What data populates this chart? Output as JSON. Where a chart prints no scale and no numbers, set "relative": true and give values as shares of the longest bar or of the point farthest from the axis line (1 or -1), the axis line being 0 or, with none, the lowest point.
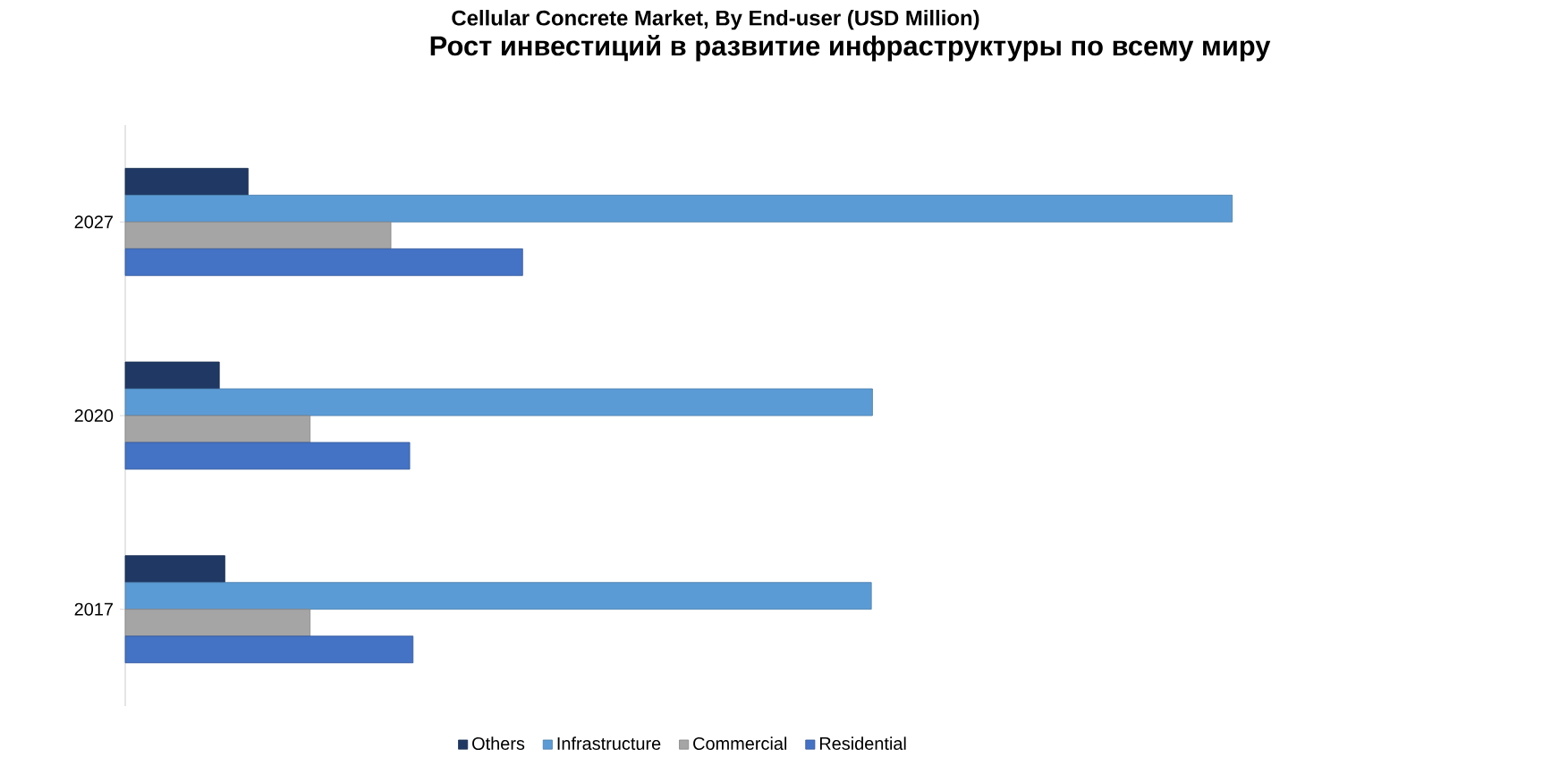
{
  "chart_data": {
    "type": "bar",
    "orientation": "horizontal",
    "relative": true,
    "title": "Cellular Concrete Market, By End-user (USD Million)",
    "subtitle": "Рост инвестиций в развитие инфраструктуры по всему миру",
    "categories": [
      "2027",
      "2020",
      "2017"
    ],
    "series": [
      {
        "name": "Others",
        "color": "#1f3864",
        "values": [
          0.111,
          0.085,
          0.09
        ]
      },
      {
        "name": "Infrastructure",
        "color": "#5b9bd5",
        "values": [
          1,
          0.675,
          0.674
        ]
      },
      {
        "name": "Commercial",
        "color": "#a5a5a5",
        "values": [
          0.24,
          0.167,
          0.167
        ]
      },
      {
        "name": "Residential",
        "color": "#4472c4",
        "values": [
          0.359,
          0.257,
          0.26
        ]
      }
    ],
    "legend": "bottom"
  }
}
